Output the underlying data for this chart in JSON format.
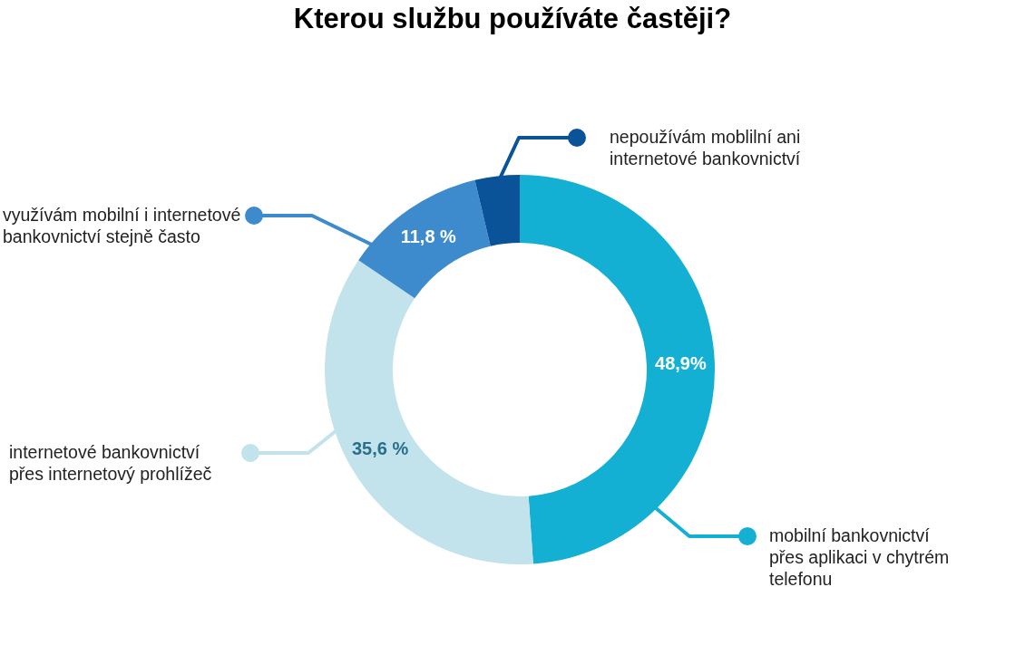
{
  "chart_data": {
    "type": "donut",
    "title": "Kterou službu používáte častěji?",
    "categories": [
      "mobilní bankovnictví přes aplikaci v chytrém telefonu",
      "internetové bankovnictví přes internetový prohlížeč",
      "využívám mobilní i internetové bankovnictví stejně často",
      "nepoužívám moblilní ani internetové bankovnictví"
    ],
    "values": [
      48.9,
      35.6,
      11.8,
      3.7
    ],
    "value_labels": [
      "48,9%",
      "35,6 %",
      "11,8 %",
      null
    ],
    "colors": [
      "#14b0d4",
      "#c2e3ec",
      "#3d8bcd",
      "#0a5399"
    ],
    "legend": "right"
  }
}
